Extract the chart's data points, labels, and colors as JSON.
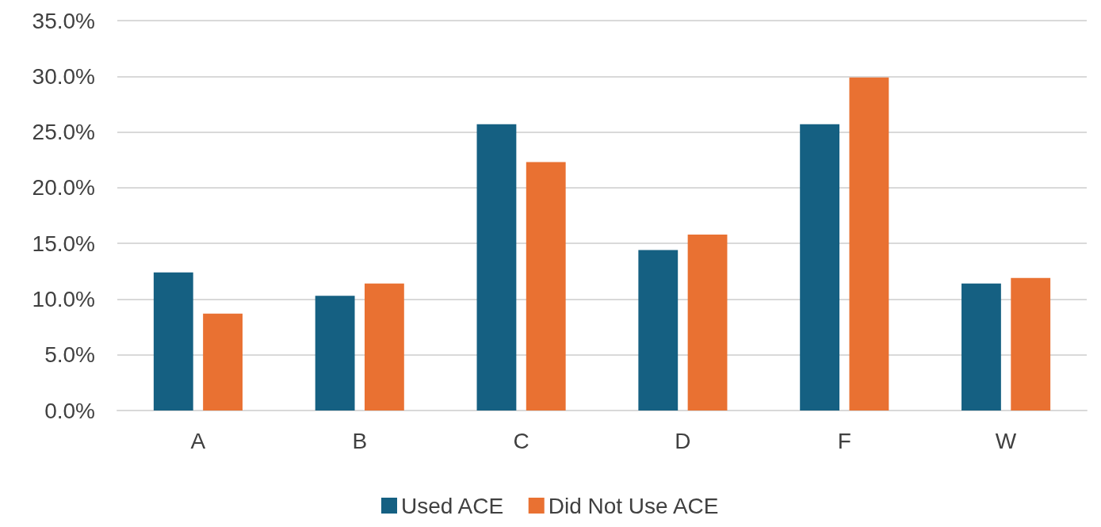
{
  "chart_data": {
    "type": "bar",
    "categories": [
      "A",
      "B",
      "C",
      "D",
      "F",
      "W"
    ],
    "series": [
      {
        "name": "Used ACE",
        "color": "#156082",
        "values": [
          12.4,
          10.3,
          25.7,
          14.4,
          25.7,
          11.4
        ]
      },
      {
        "name": "Did Not Use ACE",
        "color": "#e97132",
        "values": [
          8.7,
          11.4,
          22.3,
          15.8,
          29.9,
          11.9
        ]
      }
    ],
    "ylim": [
      0,
      35
    ],
    "yticks": [
      {
        "value": 0,
        "label": "0.0%"
      },
      {
        "value": 5,
        "label": "5.0%"
      },
      {
        "value": 10,
        "label": "10.0%"
      },
      {
        "value": 15,
        "label": "15.0%"
      },
      {
        "value": 20,
        "label": "20.0%"
      },
      {
        "value": 25,
        "label": "25.0%"
      },
      {
        "value": 30,
        "label": "30.0%"
      },
      {
        "value": 35,
        "label": "35.0%"
      }
    ],
    "grid": "y",
    "legend": "bottom"
  }
}
